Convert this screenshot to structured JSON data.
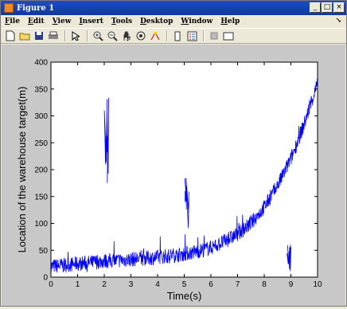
{
  "window": {
    "title": "Figure 1",
    "buttons": [
      "_",
      "□",
      "×"
    ]
  },
  "menubar": {
    "items": [
      "File",
      "Edit",
      "View",
      "Insert",
      "Tools",
      "Desktop",
      "Window",
      "Help"
    ]
  },
  "toolbar": {
    "icons": [
      "new-file-icon",
      "open-folder-icon",
      "save-icon",
      "print-icon",
      "pointer-icon",
      "zoom-in-icon",
      "zoom-out-icon",
      "pan-icon",
      "rotate-icon",
      "data-cursor-icon",
      "colorbar-icon",
      "legend-icon",
      "hide-plot-tools-icon",
      "show-plot-tools-icon"
    ]
  },
  "chart_data": {
    "type": "line",
    "xlabel": "Time(s)",
    "ylabel": "Location of the warehouse target(m)",
    "xlim": [
      0,
      10
    ],
    "ylim": [
      0,
      400
    ],
    "xticks": [
      0,
      1,
      2,
      3,
      4,
      5,
      6,
      7,
      8,
      9,
      10
    ],
    "yticks": [
      0,
      50,
      100,
      150,
      200,
      250,
      300,
      350,
      400
    ],
    "series": [
      {
        "color": "#0000ff",
        "x": [
          0,
          0.5,
          1,
          1.5,
          2,
          2.5,
          3,
          3.5,
          4,
          4.5,
          5,
          5.5,
          6,
          6.5,
          7,
          7.5,
          8,
          8.5,
          9,
          9.5,
          10
        ],
        "y": [
          20,
          22,
          25,
          27,
          30,
          31,
          33,
          35,
          37,
          40,
          43,
          48,
          55,
          66,
          80,
          100,
          130,
          170,
          220,
          285,
          360
        ]
      }
    ],
    "outliers": [
      {
        "x": 2.05,
        "y_range": [
          150,
          350
        ]
      },
      {
        "x": 5.05,
        "y_range": [
          90,
          200
        ]
      },
      {
        "x": 8.9,
        "y_range": [
          10,
          65
        ]
      }
    ],
    "grid": false
  }
}
